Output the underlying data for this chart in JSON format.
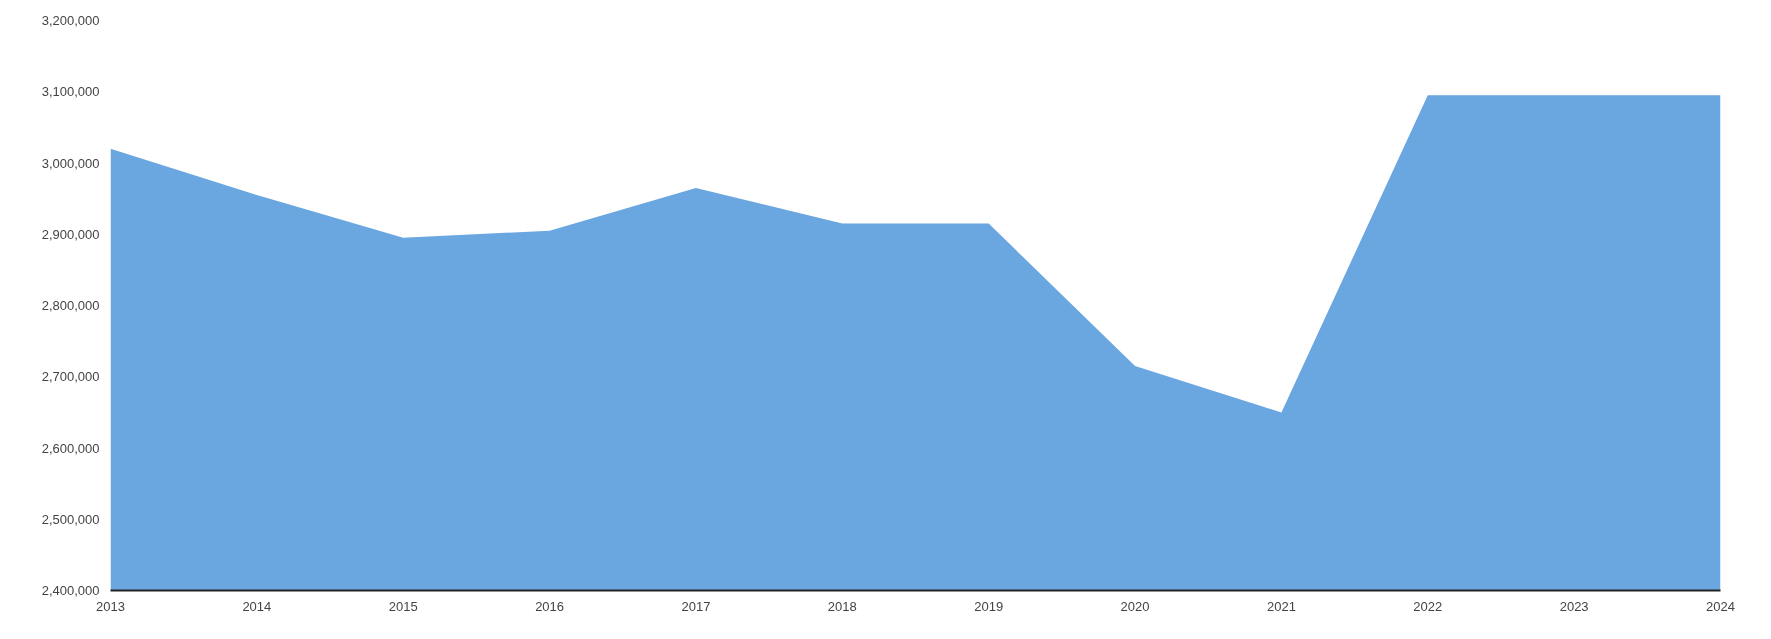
{
  "chart_data": {
    "type": "area",
    "x": [
      2013,
      2014,
      2015,
      2016,
      2017,
      2018,
      2019,
      2020,
      2021,
      2022,
      2023,
      2024
    ],
    "series": [
      {
        "color": "#6aa6e0",
        "values": [
          3020000,
          2955000,
          2895000,
          2905000,
          2965000,
          2915000,
          2915000,
          2715000,
          2650000,
          3095000,
          3095000,
          3095000
        ]
      }
    ],
    "xlim": [
      2013,
      2024
    ],
    "xticks": [
      2013,
      2014,
      2015,
      2016,
      2017,
      2018,
      2019,
      2020,
      2021,
      2022,
      2023,
      2024
    ],
    "ylim": [
      2400000,
      3200000
    ],
    "yticks": [
      {
        "value": 2400000,
        "label": "2,400,000"
      },
      {
        "value": 2500000,
        "label": "2,500,000"
      },
      {
        "value": 2600000,
        "label": "2,600,000"
      },
      {
        "value": 2700000,
        "label": "2,700,000"
      },
      {
        "value": 2800000,
        "label": "2,800,000"
      },
      {
        "value": 2900000,
        "label": "2,900,000"
      },
      {
        "value": 3000000,
        "label": "3,000,000"
      },
      {
        "value": 3100000,
        "label": "3,100,000"
      },
      {
        "value": 3200000,
        "label": "3,200,000"
      }
    ]
  }
}
